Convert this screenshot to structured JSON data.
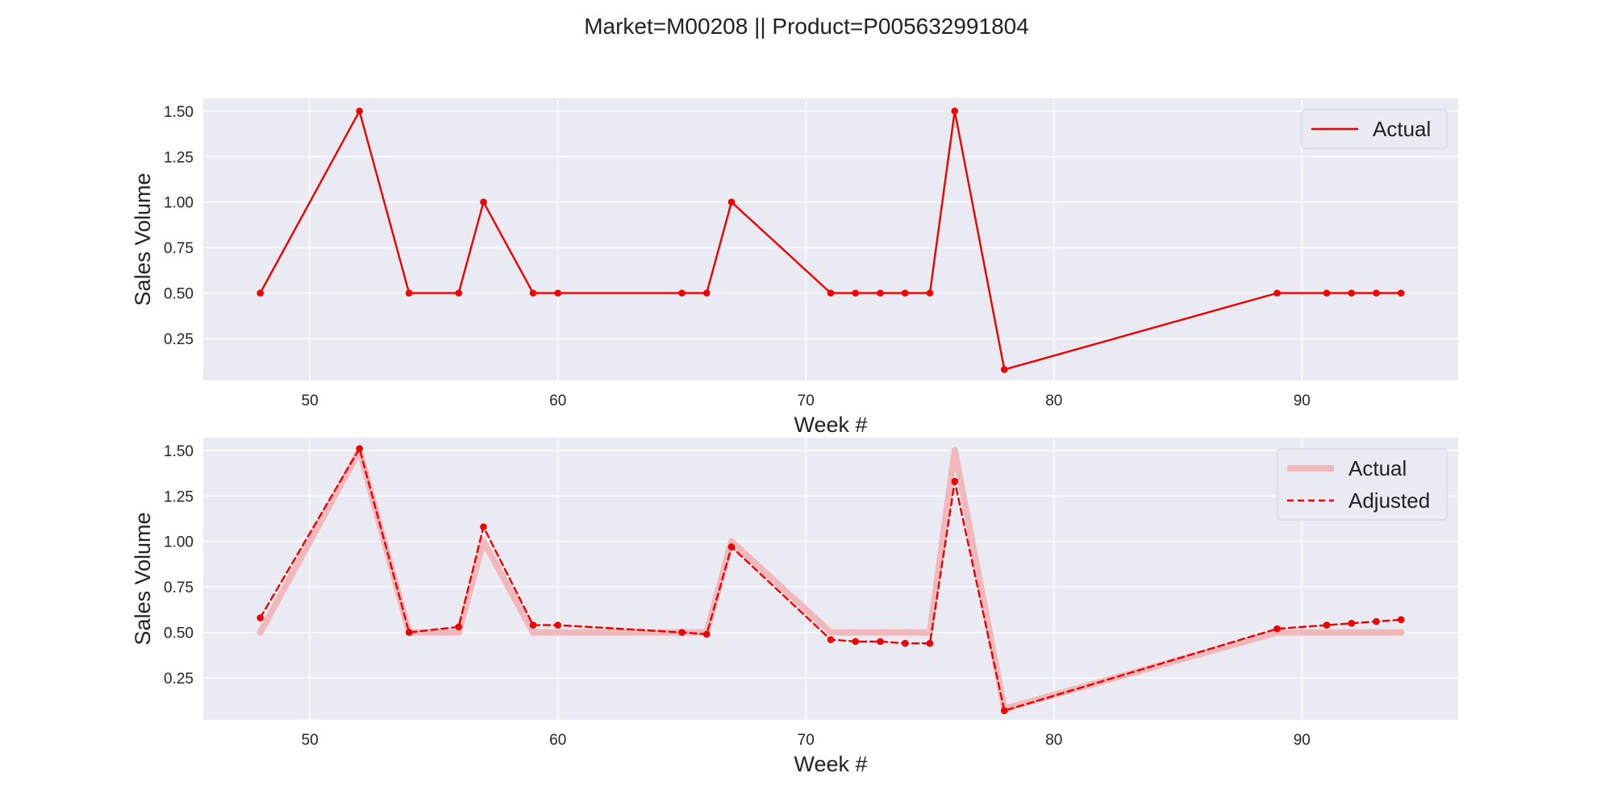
{
  "figure": {
    "title": "Market=M00208 || Product=P005632991804"
  },
  "colors": {
    "axes_background": "#eaeaf2",
    "grid": "#ffffff",
    "actual_line": "#ee0000",
    "actual_faded": "#f2b9bd",
    "adjusted_line": "#ee0000"
  },
  "chart_data": [
    {
      "type": "line",
      "title": "",
      "xlabel": "Week #",
      "ylabel": "Sales Volume",
      "xlim": [
        45.7,
        96.3
      ],
      "ylim": [
        0.02,
        1.57
      ],
      "xticks": [
        50,
        60,
        70,
        80,
        90
      ],
      "yticks": [
        0.25,
        0.5,
        0.75,
        1.0,
        1.25,
        1.5
      ],
      "ytick_labels": [
        "0.25",
        "0.50",
        "0.75",
        "1.00",
        "1.25",
        "1.50"
      ],
      "grid": true,
      "legend": "upper right",
      "x": [
        48,
        52,
        54,
        56,
        57,
        59,
        60,
        65,
        66,
        67,
        71,
        72,
        73,
        74,
        75,
        76,
        78,
        89,
        91,
        92,
        93,
        94
      ],
      "series": [
        {
          "name": "Actual",
          "style": "solid",
          "markers": true,
          "values": [
            0.5,
            1.5,
            0.5,
            0.5,
            1.0,
            0.5,
            0.5,
            0.5,
            0.5,
            1.0,
            0.5,
            0.5,
            0.5,
            0.5,
            0.5,
            1.5,
            0.08,
            0.5,
            0.5,
            0.5,
            0.5,
            0.5
          ]
        }
      ]
    },
    {
      "type": "line",
      "title": "",
      "xlabel": "Week #",
      "ylabel": "Sales Volume",
      "xlim": [
        45.7,
        96.3
      ],
      "ylim": [
        0.02,
        1.57
      ],
      "xticks": [
        50,
        60,
        70,
        80,
        90
      ],
      "yticks": [
        0.25,
        0.5,
        0.75,
        1.0,
        1.25,
        1.5
      ],
      "ytick_labels": [
        "0.25",
        "0.50",
        "0.75",
        "1.00",
        "1.25",
        "1.50"
      ],
      "grid": true,
      "legend": "upper right",
      "x": [
        48,
        52,
        54,
        56,
        57,
        59,
        60,
        65,
        66,
        67,
        71,
        72,
        73,
        74,
        75,
        76,
        78,
        89,
        91,
        92,
        93,
        94
      ],
      "series": [
        {
          "name": "Actual",
          "style": "thick-faded",
          "markers": true,
          "values": [
            0.5,
            1.5,
            0.5,
            0.5,
            1.0,
            0.5,
            0.5,
            0.5,
            0.5,
            1.0,
            0.5,
            0.5,
            0.5,
            0.5,
            0.5,
            1.5,
            0.08,
            0.5,
            0.5,
            0.5,
            0.5,
            0.5
          ]
        },
        {
          "name": "Adjusted",
          "style": "dashed",
          "markers": true,
          "values": [
            0.58,
            1.51,
            0.5,
            0.53,
            1.08,
            0.54,
            0.54,
            0.5,
            0.49,
            0.97,
            0.46,
            0.45,
            0.45,
            0.44,
            0.44,
            1.33,
            0.07,
            0.52,
            0.54,
            0.55,
            0.56,
            0.57
          ]
        }
      ]
    }
  ]
}
